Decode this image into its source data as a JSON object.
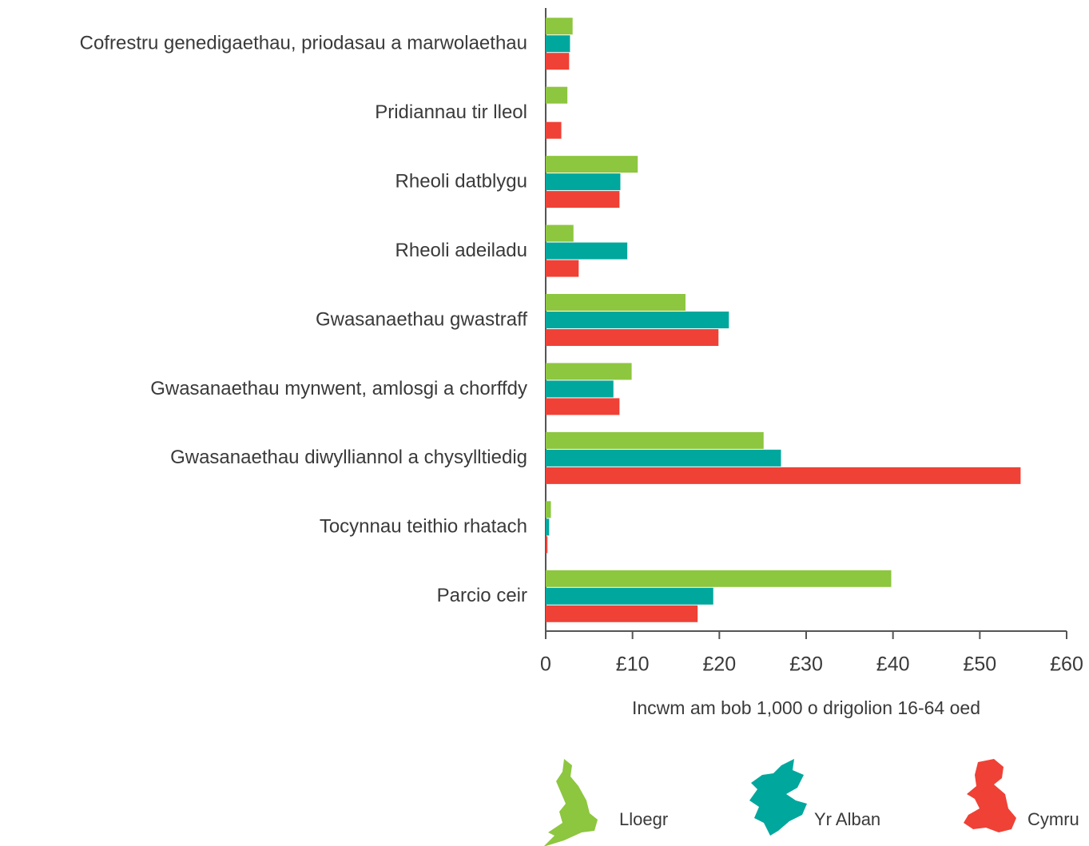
{
  "chart_data": {
    "type": "hbar",
    "categories": [
      "Cofrestru genedigaethau, priodasau a marwolaethau",
      "Pridiannau tir lleol",
      "Rheoli datblygu",
      "Rheoli adeiladu",
      "Gwasanaethau gwastraff",
      "Gwasanaethau mynwent, amlosgi a chorffdy",
      "Gwasanaethau diwylliannol a chysylltiedig",
      "Tocynnau teithio rhatach",
      "Parcio ceir"
    ],
    "series": [
      {
        "name": "Lloegr",
        "color": "#8dc63f",
        "values": [
          3.1,
          2.5,
          10.6,
          3.2,
          16.1,
          9.9,
          25.1,
          0.6,
          39.8
        ]
      },
      {
        "name": "Yr Alban",
        "color": "#00a79d",
        "values": [
          2.8,
          null,
          8.6,
          9.4,
          21.1,
          7.8,
          27.1,
          0.4,
          19.3
        ]
      },
      {
        "name": "Cymru",
        "color": "#ef4136",
        "values": [
          2.7,
          1.8,
          8.5,
          3.8,
          19.9,
          8.5,
          54.7,
          0.2,
          17.5
        ]
      }
    ],
    "xlabel": "Incwm am bob 1,000 o drigolion 16-64 oed",
    "xlim": [
      0,
      60
    ],
    "xticks": [
      0,
      {
        "value": 10,
        "label": "£10"
      },
      {
        "value": 20,
        "label": "£20"
      },
      {
        "value": 30,
        "label": "£30"
      },
      {
        "value": 40,
        "label": "£40"
      },
      {
        "value": 50,
        "label": "£50"
      },
      {
        "value": 60,
        "label": "£60"
      }
    ],
    "legend": "bottom"
  }
}
